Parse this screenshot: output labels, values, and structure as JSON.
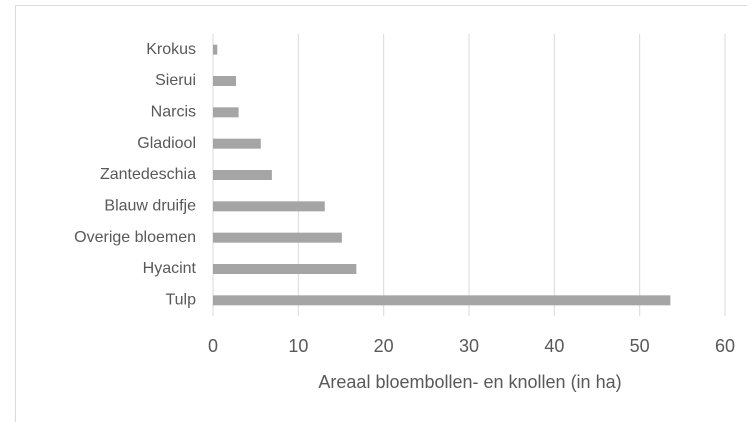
{
  "chart_data": {
    "type": "bar",
    "orientation": "horizontal",
    "categories": [
      "Krokus",
      "Sierui",
      "Narcis",
      "Gladiool",
      "Zantedeschia",
      "Blauw druifje",
      "Overige bloemen",
      "Hyacint",
      "Tulp"
    ],
    "values": [
      0.5,
      2.7,
      3.0,
      5.6,
      6.9,
      13.1,
      15.1,
      16.8,
      53.6
    ],
    "color": "#a5a5a5",
    "xlabel": "Areaal bloembollen- en knollen  (in ha)",
    "xlim": [
      0,
      60
    ],
    "xticks": [
      0,
      10,
      20,
      30,
      40,
      50,
      60
    ],
    "grid": true
  }
}
